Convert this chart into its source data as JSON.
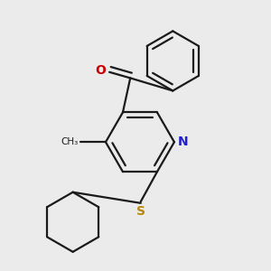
{
  "bg_color": "#ebebeb",
  "bond_color": "#1a1a1a",
  "bond_lw": 1.6,
  "dbo": 0.018,
  "N_color": "#2020cc",
  "O_color": "#cc0000",
  "S_color": "#b8860b",
  "text_color": "#1a1a1a",
  "font_size": 10,
  "figsize": [
    3.0,
    3.0
  ],
  "dpi": 100,
  "xlim": [
    0.05,
    0.95
  ],
  "ylim": [
    0.05,
    0.95
  ]
}
